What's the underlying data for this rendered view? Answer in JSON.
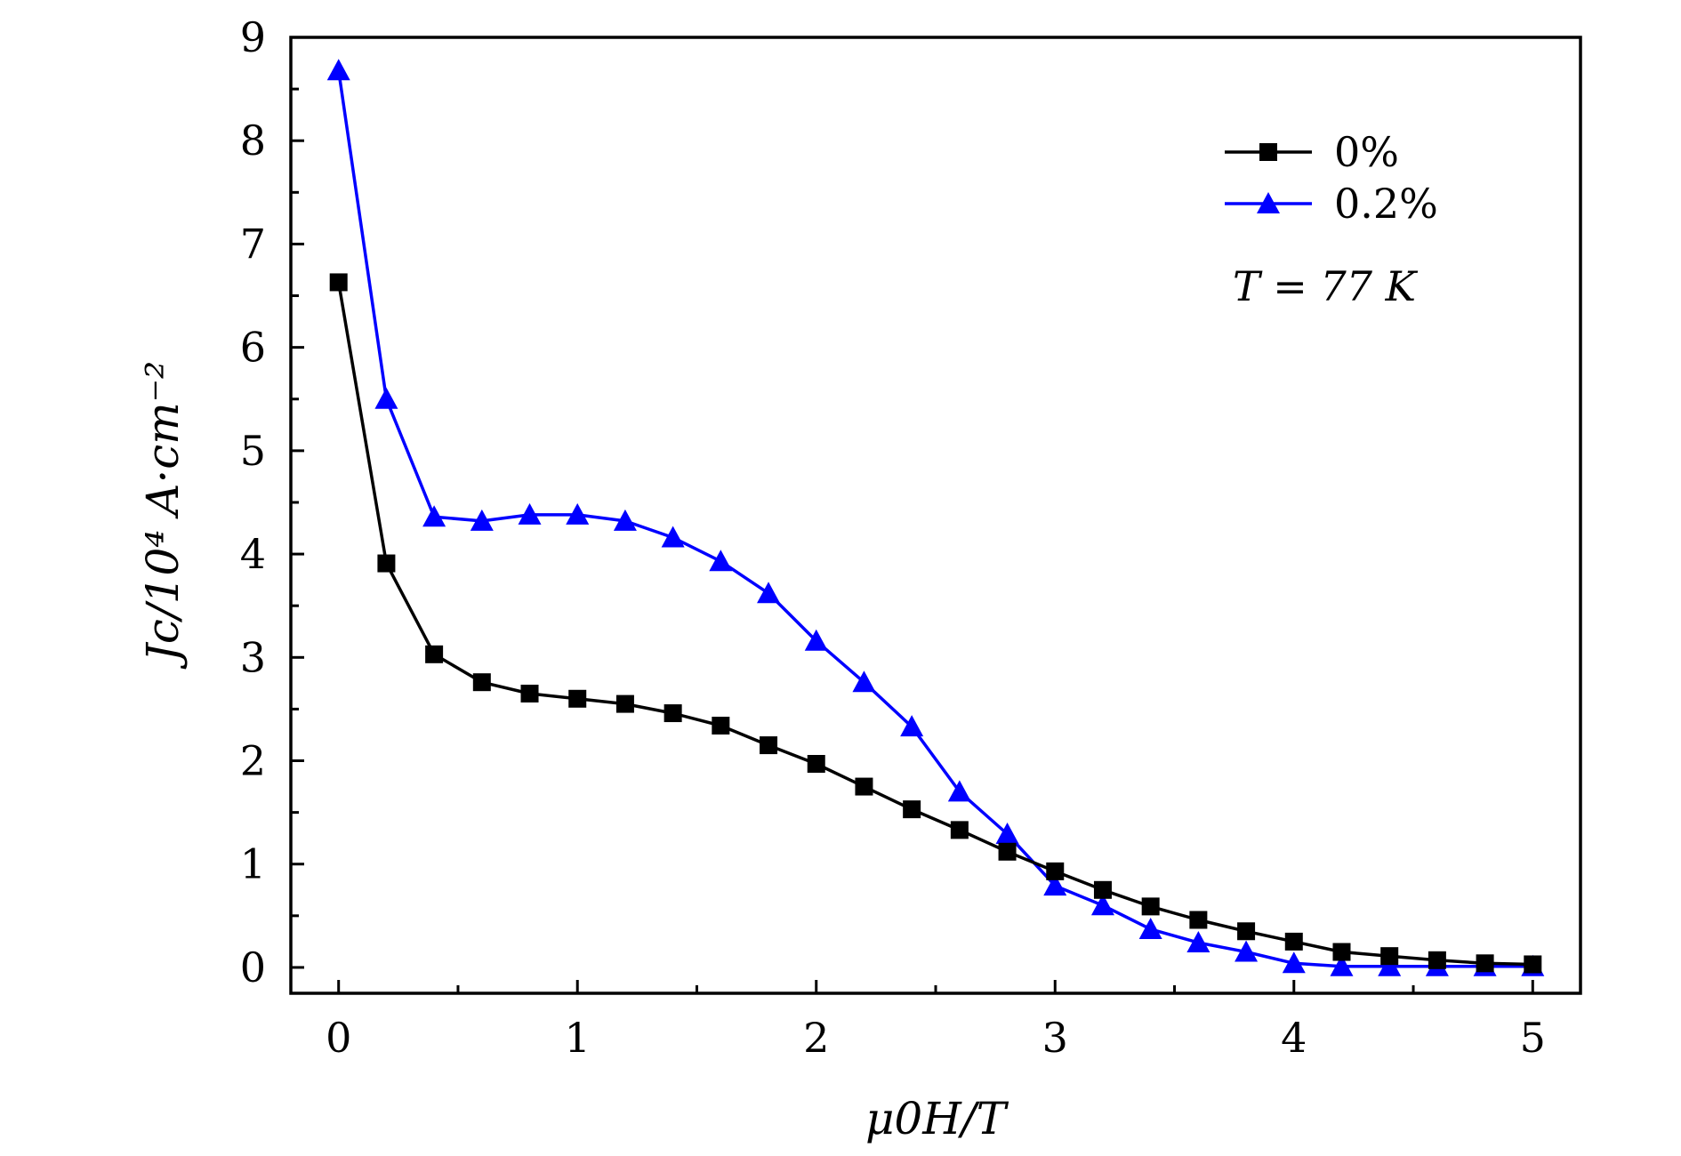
{
  "chart_data": {
    "type": "line",
    "title": "",
    "xlabel": "μ0H/T",
    "ylabel": "Jc/10⁴ A·cm⁻²",
    "xlim": [
      -0.2,
      5.2
    ],
    "ylim": [
      -0.25,
      9
    ],
    "xticks": [
      "0",
      "1",
      "2",
      "3",
      "4",
      "5"
    ],
    "yticks": [
      "0",
      "1",
      "2",
      "3",
      "4",
      "5",
      "6",
      "7",
      "8",
      "9"
    ],
    "grid": false,
    "legend_position": "top-right",
    "annotation": "T = 77 K",
    "x": [
      0,
      0.2,
      0.4,
      0.6,
      0.8,
      1.0,
      1.2,
      1.4,
      1.6,
      1.8,
      2.0,
      2.2,
      2.4,
      2.6,
      2.8,
      3.0,
      3.2,
      3.4,
      3.6,
      3.8,
      4.0,
      4.2,
      4.4,
      4.6,
      4.8,
      5.0
    ],
    "series": [
      {
        "name": "0%",
        "color": "#000000",
        "marker": "square",
        "values": [
          6.63,
          3.91,
          3.03,
          2.76,
          2.65,
          2.6,
          2.55,
          2.46,
          2.34,
          2.15,
          1.97,
          1.75,
          1.53,
          1.33,
          1.12,
          0.93,
          0.75,
          0.59,
          0.46,
          0.35,
          0.25,
          0.15,
          0.11,
          0.07,
          0.04,
          0.03
        ]
      },
      {
        "name": "0.2%",
        "color": "#0000ff",
        "marker": "triangle",
        "values": [
          8.68,
          5.5,
          4.36,
          4.32,
          4.38,
          4.38,
          4.32,
          4.16,
          3.93,
          3.62,
          3.16,
          2.76,
          2.33,
          1.7,
          1.29,
          0.79,
          0.6,
          0.37,
          0.24,
          0.15,
          0.04,
          0.01,
          0.01,
          0.01,
          0.01,
          0.01
        ]
      }
    ]
  }
}
